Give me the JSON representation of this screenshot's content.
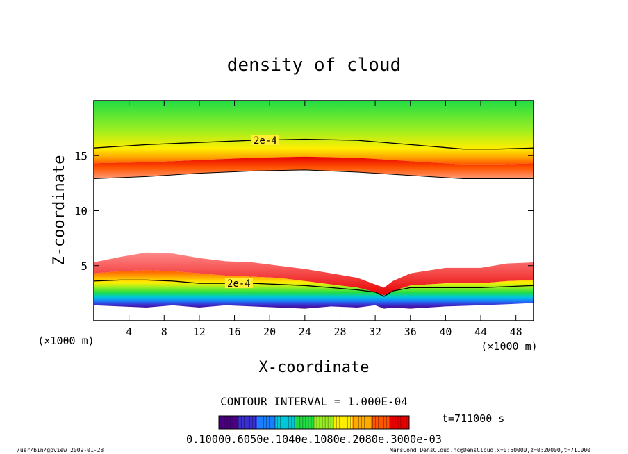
{
  "chart_data": {
    "type": "heatmap",
    "title": "density of cloud",
    "xlabel": "X-coordinate",
    "ylabel": "Z-coordinate",
    "x_unit": "(×1000 m)",
    "xlim": [
      0,
      50
    ],
    "ylim": [
      0,
      20
    ],
    "x_ticks": [
      4,
      8,
      12,
      16,
      20,
      24,
      28,
      32,
      36,
      40,
      44,
      48
    ],
    "y_ticks": [
      5,
      10,
      15
    ],
    "contour_interval_label": "CONTOUR INTERVAL = 1.000E-04",
    "time_label": "t=711000 s",
    "colorbar_labels": "0.10000.6050e.1040e.1080e.2080e.3000e-03",
    "colormap": [
      "#4b0082",
      "#3a2fd0",
      "#1a7fff",
      "#00c8d8",
      "#22dd44",
      "#99ee22",
      "#ffee00",
      "#ffaa00",
      "#ff5500",
      "#e80000"
    ],
    "upper_layer": {
      "x": [
        0,
        6,
        12,
        18,
        24,
        30,
        36,
        42,
        46,
        50
      ],
      "bottom_z": [
        12.9,
        13.1,
        13.4,
        13.6,
        13.7,
        13.5,
        13.2,
        12.9,
        12.9,
        12.9
      ],
      "peak_z": [
        14.3,
        14.4,
        14.6,
        14.8,
        14.9,
        14.8,
        14.5,
        14.2,
        14.2,
        14.3
      ],
      "contour_2e4_z": [
        15.7,
        16.0,
        16.2,
        16.4,
        16.5,
        16.4,
        16.0,
        15.6,
        15.6,
        15.7
      ],
      "contour_label": "2e-4"
    },
    "lower_layer": {
      "x": [
        0,
        3,
        6,
        9,
        12,
        15,
        18,
        21,
        24,
        27,
        30,
        32,
        33,
        34,
        36,
        40,
        44,
        47,
        50
      ],
      "top_z": [
        5.3,
        5.8,
        6.2,
        6.1,
        5.7,
        5.4,
        5.3,
        5.0,
        4.7,
        4.3,
        3.9,
        3.3,
        3.0,
        3.6,
        4.3,
        4.8,
        4.8,
        5.2,
        5.3
      ],
      "peak_z": [
        4.3,
        4.5,
        4.6,
        4.5,
        4.3,
        4.1,
        4.0,
        3.9,
        3.6,
        3.3,
        3.0,
        2.6,
        2.3,
        2.7,
        3.2,
        3.4,
        3.4,
        3.6,
        3.7
      ],
      "contour_2e4_z": [
        3.6,
        3.7,
        3.7,
        3.6,
        3.4,
        3.4,
        3.4,
        3.3,
        3.2,
        3.0,
        2.8,
        2.6,
        2.2,
        2.7,
        3.0,
        3.0,
        3.0,
        3.1,
        3.2
      ],
      "bottom_z": [
        1.4,
        1.3,
        1.2,
        1.4,
        1.2,
        1.4,
        1.3,
        1.2,
        1.1,
        1.3,
        1.2,
        1.4,
        1.1,
        1.2,
        1.1,
        1.3,
        1.4,
        1.5,
        1.6
      ],
      "contour_label": "2e-4"
    }
  },
  "footer": {
    "left": "/usr/bin/gpview  2009-01-28",
    "right": "MarsCond_DensCloud.nc@DensCloud,x=0:50000,z=0:20000,t=711000"
  }
}
